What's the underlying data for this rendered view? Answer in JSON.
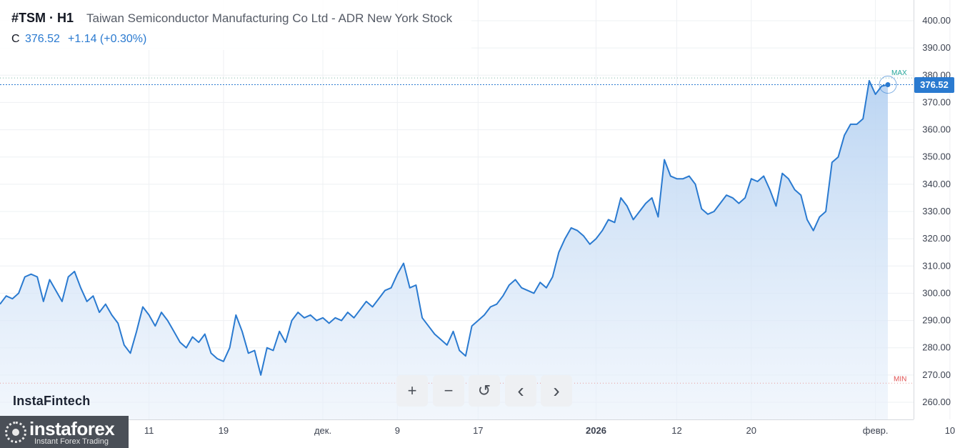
{
  "header": {
    "symbol": "#TSM · H1",
    "name": "Taiwan Semiconductor Manufacturing Co Ltd - ADR New York Stock",
    "close_label": "C",
    "close_value": "376.52",
    "change": "+1.14 (+0.30%)"
  },
  "brand": "InstaFintech",
  "logo": {
    "text": "instaforex",
    "tagline": "Instant Forex Trading"
  },
  "price_tag": "376.52",
  "markers": {
    "max": "MAX",
    "min": "MIN"
  },
  "controls": [
    {
      "name": "zoom-in-button",
      "icon": "plus-icon",
      "glyph": "+"
    },
    {
      "name": "zoom-out-button",
      "icon": "minus-icon",
      "glyph": "−"
    },
    {
      "name": "reset-button",
      "icon": "reset-icon",
      "glyph": "↺"
    },
    {
      "name": "scroll-left-button",
      "icon": "chevron-left-icon",
      "glyph": "‹"
    },
    {
      "name": "scroll-right-button",
      "icon": "chevron-right-icon",
      "glyph": "›"
    }
  ],
  "colors": {
    "line": "#2a7ad0",
    "area_top": "#b8d3f2",
    "max": "#26a69a",
    "min": "#e05252",
    "grid": "#eef0f3"
  },
  "chart_data": {
    "type": "area",
    "title": "#TSM · H1",
    "ylim": [
      255,
      405
    ],
    "y_ticks": [
      260,
      270,
      280,
      290,
      300,
      310,
      320,
      330,
      340,
      350,
      360,
      370,
      380,
      390,
      400
    ],
    "y_tick_labels": [
      "260.00",
      "270.00",
      "280.00",
      "290.00",
      "300.00",
      "310.00",
      "320.00",
      "330.00",
      "340.00",
      "350.00",
      "360.00",
      "370.00",
      "380.00",
      "390.00",
      "400.00"
    ],
    "x_tick_labels": [
      "11",
      "19",
      "дек.",
      "9",
      "17",
      "2026",
      "12",
      "20",
      "февр.",
      "10"
    ],
    "x_tick_index": [
      24,
      36,
      52,
      64,
      77,
      96,
      109,
      121,
      141,
      153
    ],
    "max_line": 379,
    "min_line": 267,
    "last_value": 376.52,
    "series": [
      {
        "values": [
          296,
          299,
          298,
          300,
          306,
          307,
          306,
          297,
          305,
          301,
          297,
          306,
          308,
          302,
          297,
          299,
          293,
          296,
          292,
          289,
          281,
          278,
          286,
          295,
          292,
          288,
          293,
          290,
          286,
          282,
          280,
          284,
          282,
          285,
          278,
          276,
          275,
          280,
          292,
          286,
          278,
          279,
          270,
          280,
          279,
          286,
          282,
          290,
          293,
          291,
          292,
          290,
          291,
          289,
          291,
          290,
          293,
          291,
          294,
          297,
          295,
          298,
          301,
          302,
          307,
          311,
          302,
          303,
          291,
          288,
          285,
          283,
          281,
          286,
          279,
          277,
          288,
          290,
          292,
          295,
          296,
          299,
          303,
          305,
          302,
          301,
          300,
          304,
          302,
          306,
          315,
          320,
          324,
          323,
          321,
          318,
          320,
          323,
          327,
          326,
          335,
          332,
          327,
          330,
          333,
          335,
          328,
          349,
          343,
          342,
          342,
          343,
          340,
          331,
          329,
          330,
          333,
          336,
          335,
          333,
          335,
          342,
          341,
          343,
          338,
          332,
          344,
          342,
          338,
          336,
          327,
          323,
          328,
          330,
          348,
          350,
          358,
          362,
          362,
          364,
          378,
          373,
          376,
          376.52
        ]
      }
    ]
  }
}
